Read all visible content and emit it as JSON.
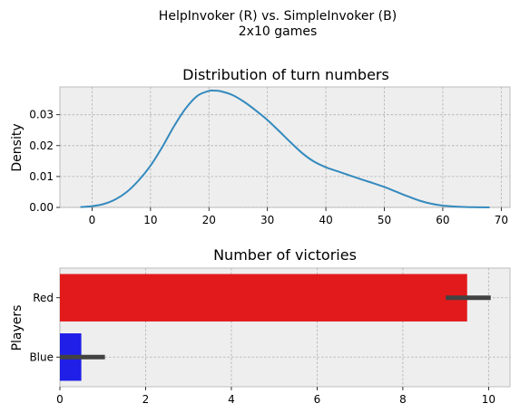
{
  "figure": {
    "suptitle_line1": "HelpInvoker (R) vs. SimpleInvoker (B)",
    "suptitle_line2": "2x10 games"
  },
  "chart_data": [
    {
      "type": "line",
      "title": "Distribution of turn numbers",
      "xlabel": "",
      "ylabel": "Density",
      "xlim": [
        -5.5,
        71.5
      ],
      "ylim": [
        0,
        0.039
      ],
      "xticks": [
        0,
        10,
        20,
        30,
        40,
        50,
        60,
        70
      ],
      "yticks": [
        0.0,
        0.01,
        0.02,
        0.03
      ],
      "ytick_labels": [
        "0.00",
        "0.01",
        "0.02",
        "0.03"
      ],
      "grid": true,
      "line_color": "#348abd",
      "x": [
        -2,
        0,
        2,
        4,
        6,
        8,
        10,
        12,
        14,
        16,
        18,
        20,
        21,
        22,
        24,
        26,
        28,
        30,
        32,
        34,
        36,
        38,
        40,
        42,
        44,
        46,
        48,
        50,
        52,
        54,
        56,
        58,
        60,
        62,
        64,
        66,
        68
      ],
      "y": [
        0.0001,
        0.0004,
        0.0011,
        0.0026,
        0.0051,
        0.0088,
        0.0135,
        0.0195,
        0.0262,
        0.032,
        0.0361,
        0.0377,
        0.0378,
        0.0376,
        0.0364,
        0.0342,
        0.0314,
        0.0283,
        0.0247,
        0.021,
        0.0175,
        0.0148,
        0.013,
        0.0117,
        0.0104,
        0.0091,
        0.0079,
        0.0066,
        0.0051,
        0.0036,
        0.0022,
        0.0012,
        0.0006,
        0.0003,
        0.0001,
        5e-05,
        0.0
      ]
    },
    {
      "type": "bar",
      "orientation": "horizontal",
      "title": "Number of victories",
      "xlabel": "",
      "ylabel": "Players",
      "categories": [
        "Red",
        "Blue"
      ],
      "values": [
        9.5,
        0.5
      ],
      "error_low": [
        9.0,
        0.0
      ],
      "error_high": [
        10.05,
        1.05
      ],
      "colors": [
        "#e31a1c",
        "#1f1fe8"
      ],
      "xlim": [
        0,
        10.5
      ],
      "xticks": [
        0,
        2,
        4,
        6,
        8,
        10
      ],
      "grid": true
    }
  ]
}
